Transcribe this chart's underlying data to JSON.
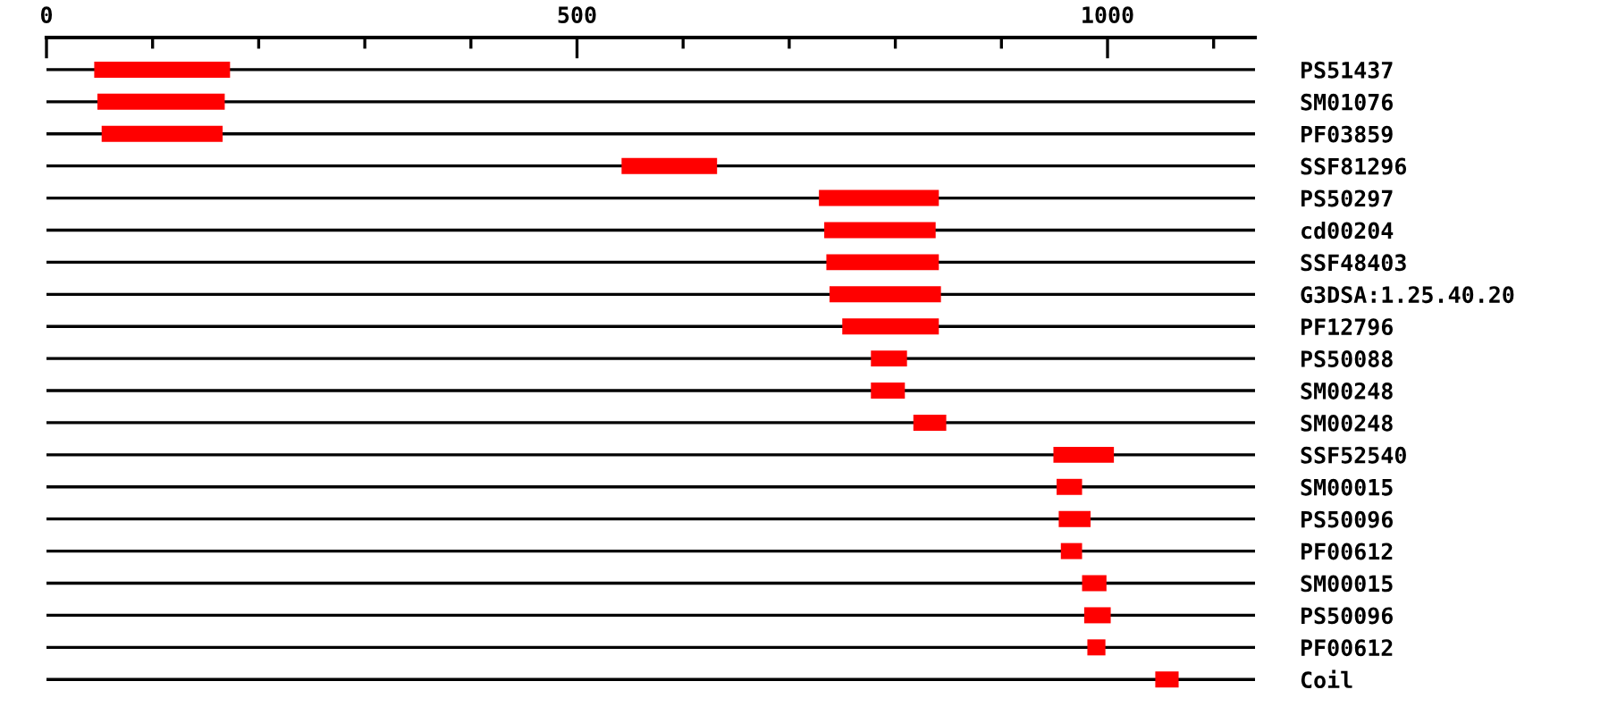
{
  "chart_data": {
    "type": "bar",
    "orientation": "horizontal",
    "categories": [
      "PS51437",
      "SM01076",
      "PF03859",
      "SSF81296",
      "PS50297",
      "cd00204",
      "SSF48403",
      "G3DSA:1.25.40.20",
      "PF12796",
      "PS50088",
      "SM00248",
      "SM00248",
      "SSF52540",
      "SM00015",
      "PS50096",
      "PF00612",
      "SM00015",
      "PS50096",
      "PF00612",
      "Coil"
    ],
    "base": [
      45,
      48,
      52,
      542,
      728,
      733,
      735,
      738,
      750,
      777,
      777,
      817,
      949,
      952,
      954,
      956,
      976,
      978,
      981,
      1045
    ],
    "values": [
      128,
      120,
      114,
      90,
      113,
      105,
      106,
      105,
      91,
      34,
      32,
      31,
      57,
      24,
      30,
      20,
      23,
      25,
      17,
      22
    ],
    "color": "#ff0000",
    "xlim": [
      0,
      1139
    ],
    "xticks": [
      0,
      {
        "value": 100,
        "label": null
      },
      {
        "value": 200,
        "label": null
      },
      {
        "value": 300,
        "label": null
      },
      {
        "value": 400,
        "label": null
      },
      500,
      {
        "value": 600,
        "label": null
      },
      {
        "value": 700,
        "label": null
      },
      {
        "value": 800,
        "label": null
      },
      {
        "value": 900,
        "label": null
      },
      1000,
      {
        "value": 1100,
        "label": null
      }
    ],
    "grid": "y"
  }
}
